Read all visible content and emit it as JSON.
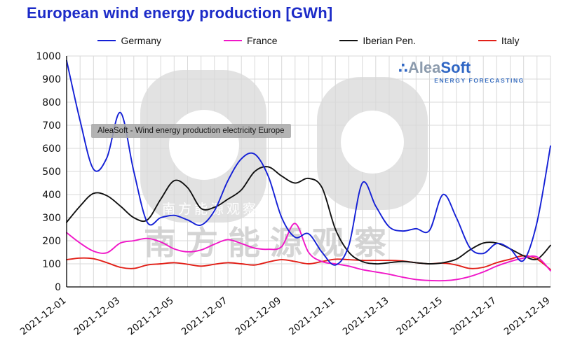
{
  "page": {
    "title": "European wind energy production [GWh]"
  },
  "annotation": {
    "text": "AleaSoft - Wind energy production electricity Europe"
  },
  "logo": {
    "dots": "∴",
    "alea": "Alea",
    "soft": "Soft",
    "subtitle": "ENERGY FORECASTING"
  },
  "watermark": {
    "cn_text": "南方能源观察",
    "small_text": "南方能源观察"
  },
  "colors": {
    "title": "#1c2bc8",
    "grid": "#d9d9d9",
    "axis": "#000000",
    "watermark_fill": "#d8d8d8",
    "watermark_text": "#cccccc"
  },
  "chart_data": {
    "type": "line",
    "title": "European wind energy production [GWh]",
    "x_unit": "days since 2021-12-01",
    "x_step": 0.5,
    "x_max": 18,
    "x_tick_positions": [
      0,
      2,
      4,
      6,
      8,
      10,
      12,
      14,
      16,
      18
    ],
    "x_tick_labels": [
      "2021-12-01",
      "2021-12-03",
      "2021-12-05",
      "2021-12-07",
      "2021-12-09",
      "2021-12-11",
      "2021-12-13",
      "2021-12-15",
      "2021-12-17",
      "2021-12-19"
    ],
    "ylim": [
      0,
      1000
    ],
    "y_tick_step": 100,
    "grid": true,
    "legend_position": "top",
    "series": [
      {
        "name": "Germany",
        "color": "#1420d6",
        "values": [
          980,
          720,
          510,
          560,
          755,
          500,
          280,
          300,
          310,
          290,
          268,
          330,
          460,
          555,
          575,
          480,
          300,
          215,
          230,
          150,
          95,
          180,
          450,
          350,
          260,
          242,
          252,
          245,
          400,
          300,
          170,
          145,
          188,
          165,
          115,
          280,
          610
        ]
      },
      {
        "name": "France",
        "color": "#f017c8",
        "values": [
          235,
          190,
          155,
          148,
          190,
          200,
          210,
          195,
          165,
          152,
          160,
          185,
          205,
          188,
          168,
          163,
          175,
          275,
          150,
          110,
          100,
          90,
          75,
          65,
          55,
          42,
          32,
          28,
          27,
          32,
          45,
          65,
          90,
          110,
          125,
          130,
          70
        ]
      },
      {
        "name": "Iberian Pen.",
        "color": "#111111",
        "values": [
          280,
          350,
          405,
          395,
          350,
          300,
          290,
          380,
          460,
          430,
          340,
          345,
          380,
          420,
          500,
          520,
          480,
          450,
          470,
          430,
          250,
          150,
          110,
          100,
          105,
          110,
          105,
          100,
          105,
          120,
          160,
          190,
          190,
          165,
          135,
          120,
          180
        ]
      },
      {
        "name": "Italy",
        "color": "#e22018",
        "values": [
          118,
          125,
          122,
          105,
          85,
          80,
          95,
          100,
          105,
          98,
          90,
          98,
          105,
          100,
          95,
          108,
          118,
          110,
          100,
          110,
          120,
          118,
          115,
          115,
          115,
          112,
          105,
          100,
          103,
          95,
          80,
          85,
          105,
          120,
          135,
          120,
          75
        ]
      }
    ]
  }
}
